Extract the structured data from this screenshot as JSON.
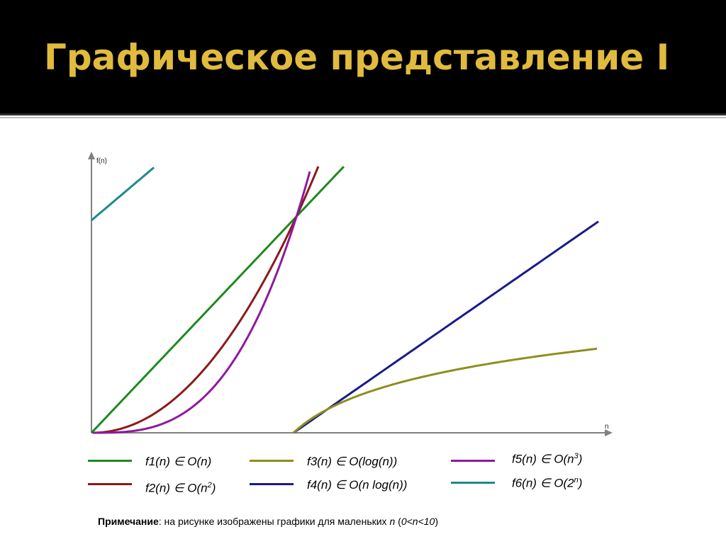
{
  "slide": {
    "title": "Графическое представление I",
    "title_color": "#e0bb3e",
    "header_background": "#000000"
  },
  "chart_data": {
    "type": "line",
    "ylabel": "f(n)",
    "xlabel": "n",
    "grid": false,
    "legend_placement": "bottom",
    "series": [
      {
        "name": "f1(n)",
        "notation": "O(n)",
        "color": "#1e8a1e"
      },
      {
        "name": "f2(n)",
        "notation": "O(n",
        "notation_sup": "2",
        "notation_tail": ")",
        "color": "#8b1a1a"
      },
      {
        "name": "f3(n)",
        "notation": "O(log(n))",
        "color": "#8e8e1e"
      },
      {
        "name": "f4(n)",
        "notation": "O(n log(n))",
        "color": "#1a1a8c"
      },
      {
        "name": "f5(n)",
        "notation": "O(n",
        "notation_sup": "3",
        "notation_tail": ")",
        "color": "#8e1a9e"
      },
      {
        "name": "f6(n)",
        "notation": "O(2",
        "notation_sup": "n",
        "notation_tail": ")",
        "color": "#1e8a8a"
      }
    ]
  },
  "legend_symbol": "∈",
  "note": {
    "label": "Примечание",
    "text_before": ": на рисунке изображены графики для маленьких ",
    "n": "n",
    "paren_open": " (",
    "range": "0<n<10",
    "paren_close": ")"
  }
}
